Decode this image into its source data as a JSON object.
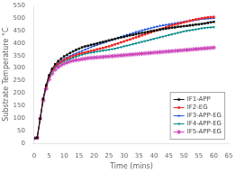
{
  "chart_data": {
    "type": "line",
    "xlabel": "Time (mins)",
    "ylabel": "Substrate Temperature °C",
    "x": [
      0,
      1,
      2,
      3,
      4,
      5,
      6,
      7,
      8,
      9,
      10,
      11,
      12,
      13,
      14,
      15,
      16,
      17,
      18,
      19,
      20,
      21,
      22,
      23,
      24,
      25,
      26,
      27,
      28,
      29,
      30,
      31,
      32,
      33,
      34,
      35,
      36,
      37,
      38,
      39,
      40,
      41,
      42,
      43,
      44,
      45,
      46,
      47,
      48,
      49,
      50,
      51,
      52,
      53,
      54,
      55,
      56,
      57,
      58,
      59,
      60
    ],
    "series": [
      {
        "name": "IF1-APP",
        "color": "#111111",
        "marker": "square",
        "values": [
          20,
          22,
          98,
          178,
          232,
          272,
          298,
          316,
          328,
          338,
          347,
          354,
          361,
          367,
          373,
          378,
          383,
          387,
          390,
          393,
          396,
          399,
          402,
          405,
          408,
          411,
          414,
          417,
          420,
          423,
          425,
          428,
          431,
          433,
          436,
          438,
          441,
          443,
          445,
          448,
          450,
          452,
          454,
          456,
          458,
          460,
          462,
          463,
          465,
          466,
          468,
          469,
          471,
          472,
          474,
          475,
          477,
          479,
          481,
          483,
          485
        ]
      },
      {
        "name": "IF2-EG",
        "color": "#ee2222",
        "marker": "square",
        "values": [
          20,
          22,
          98,
          175,
          228,
          268,
          292,
          308,
          318,
          326,
          333,
          339,
          344,
          349,
          353,
          357,
          360,
          363,
          366,
          369,
          372,
          375,
          378,
          381,
          384,
          387,
          391,
          395,
          399,
          403,
          407,
          411,
          415,
          419,
          423,
          427,
          431,
          435,
          439,
          443,
          447,
          451,
          455,
          459,
          463,
          467,
          471,
          474,
          477,
          480,
          483,
          486,
          489,
          492,
          495,
          497,
          499,
          501,
          503,
          504,
          505
        ]
      },
      {
        "name": "IF3-APP-EG",
        "color": "#2255dd",
        "marker": "triangle-up",
        "values": [
          20,
          22,
          98,
          178,
          232,
          272,
          296,
          312,
          322,
          330,
          337,
          343,
          349,
          354,
          359,
          364,
          369,
          374,
          379,
          384,
          389,
          393,
          397,
          401,
          405,
          409,
          413,
          417,
          421,
          425,
          429,
          433,
          436,
          440,
          444,
          447,
          451,
          454,
          457,
          460,
          463,
          466,
          469,
          471,
          473,
          475,
          477,
          479,
          481,
          483,
          485,
          487,
          489,
          491,
          493,
          495,
          496,
          497,
          498,
          499,
          500
        ]
      },
      {
        "name": "IF4-APP-EG",
        "color": "#008888",
        "marker": "triangle-down",
        "values": [
          20,
          22,
          98,
          175,
          228,
          265,
          288,
          304,
          314,
          322,
          328,
          333,
          338,
          342,
          346,
          350,
          354,
          357,
          360,
          362,
          364,
          366,
          368,
          370,
          372,
          374,
          376,
          378,
          381,
          384,
          387,
          390,
          393,
          396,
          399,
          402,
          405,
          408,
          411,
          414,
          417,
          420,
          423,
          426,
          429,
          432,
          435,
          438,
          441,
          444,
          447,
          449,
          451,
          453,
          455,
          457,
          459,
          461,
          462,
          463,
          464
        ]
      },
      {
        "name": "IF5-APP-EG",
        "color": "#cc44bb",
        "marker": "star",
        "values": [
          20,
          22,
          98,
          170,
          218,
          255,
          278,
          294,
          304,
          312,
          318,
          323,
          327,
          330,
          332,
          334,
          336,
          338,
          340,
          341,
          342,
          343,
          344,
          345,
          346,
          347,
          348,
          349,
          350,
          351,
          352,
          353,
          354,
          355,
          356,
          357,
          358,
          359,
          360,
          361,
          362,
          363,
          364,
          365,
          366,
          367,
          368,
          369,
          370,
          371,
          372,
          373,
          374,
          375,
          376,
          377,
          378,
          379,
          380,
          381,
          382
        ]
      }
    ],
    "xlim": [
      0,
      65
    ],
    "ylim": [
      0,
      550
    ],
    "xticks": [
      0,
      5,
      10,
      15,
      20,
      25,
      30,
      35,
      40,
      45,
      50,
      55,
      60,
      65
    ],
    "yticks": [
      0,
      50,
      100,
      150,
      200,
      250,
      300,
      350,
      400,
      450,
      500,
      550
    ],
    "grid": false,
    "legend": "lower right"
  }
}
